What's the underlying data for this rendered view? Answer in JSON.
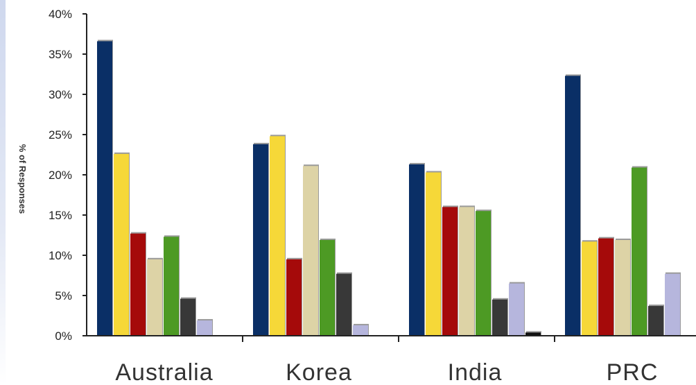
{
  "chart_data": {
    "type": "bar",
    "title": "",
    "xlabel": "",
    "ylabel": "% of Responses",
    "ylim": [
      0,
      40
    ],
    "yticks": [
      "0%",
      "5%",
      "10%",
      "15%",
      "20%",
      "25%",
      "30%",
      "35%",
      "40%"
    ],
    "categories": [
      "Australia",
      "Korea",
      "India",
      "PRC"
    ],
    "legend": "none",
    "grid": false,
    "series": [
      {
        "color": "#0a2f66",
        "values": [
          36.6,
          23.8,
          21.3,
          32.3
        ]
      },
      {
        "color": "#f6d838",
        "values": [
          22.6,
          24.8,
          20.3,
          11.7
        ]
      },
      {
        "color": "#a50a0a",
        "values": [
          12.7,
          9.5,
          16.0,
          12.1
        ]
      },
      {
        "color": "#ddd3a6",
        "values": [
          9.5,
          21.1,
          16.0,
          11.9
        ]
      },
      {
        "color": "#4d9a24",
        "values": [
          12.3,
          11.9,
          15.5,
          20.9
        ]
      },
      {
        "color": "#383838",
        "values": [
          4.6,
          7.7,
          4.5,
          3.7
        ]
      },
      {
        "color": "#b6b6dd",
        "values": [
          1.9,
          1.3,
          6.5,
          7.7
        ]
      },
      {
        "color": "#111111",
        "values": [
          0,
          0,
          0.4,
          0
        ]
      }
    ]
  }
}
